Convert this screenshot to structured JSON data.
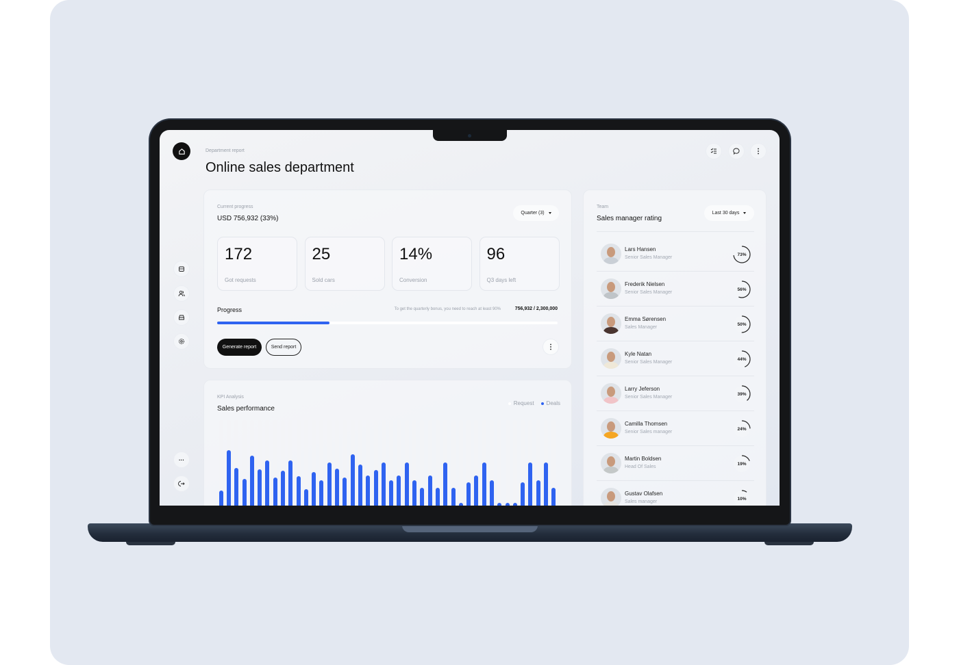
{
  "colors": {
    "accent": "#2f63f0",
    "dark": "#111111",
    "page_bg": "#e3e8f1"
  },
  "header": {
    "breadcrumb": "Department report",
    "title": "Online sales department",
    "icons": [
      "checklist-icon",
      "chat-icon",
      "more-vertical-icon"
    ]
  },
  "sidebar": {
    "top_icon": "home-icon",
    "items": [
      "store-icon",
      "users-icon",
      "car-icon",
      "settings-icon"
    ],
    "bottom": [
      "more-horizontal-icon",
      "logout-icon"
    ]
  },
  "progress_card": {
    "label": "Current progress",
    "value": "USD 756,932 (33%)",
    "period": "Quarter (3)",
    "stats": [
      {
        "value": "172",
        "label": "Got requests"
      },
      {
        "value": "25",
        "label": "Sold cars"
      },
      {
        "value": "14%",
        "label": "Conversion"
      },
      {
        "value": "96",
        "label": "Q3 days left"
      }
    ],
    "progress_label": "Progress",
    "hint": "To get the quarterly bonus, you need to reach at least 90%",
    "amount": "756,932 / 2,300,000",
    "progress_percent": 33,
    "generate_label": "Generate report",
    "send_label": "Send report"
  },
  "kpi_card": {
    "label": "KPI Analysis",
    "title": "Sales performance",
    "legend": [
      "Request",
      "Deals"
    ]
  },
  "chart_data": {
    "type": "bar",
    "legend": [
      "Request",
      "Deals"
    ],
    "series": [
      {
        "name": "Request",
        "values": [
          100,
          100,
          100,
          100,
          100,
          100,
          100,
          100,
          100,
          100,
          100,
          100,
          100,
          100,
          100,
          100,
          100,
          100,
          100,
          100,
          100,
          100,
          100,
          100,
          100,
          100,
          100,
          100,
          100,
          100,
          100,
          100,
          100,
          100,
          100,
          100,
          100,
          100,
          100,
          100,
          100,
          100,
          100,
          100
        ]
      },
      {
        "name": "Deals",
        "values": [
          23,
          82,
          56,
          40,
          74,
          54,
          67,
          42,
          52,
          67,
          44,
          25,
          50,
          38,
          64,
          55,
          42,
          76,
          61,
          45,
          53,
          64,
          38,
          45,
          64,
          38,
          27,
          45,
          27,
          64,
          27,
          5,
          35,
          45,
          64,
          38,
          5,
          5,
          5,
          35,
          64,
          38,
          64,
          27
        ]
      }
    ],
    "colors": {
      "Request": "#f3f4f7",
      "Deals": "#2f63f0"
    }
  },
  "team_card": {
    "label": "Team",
    "title": "Sales manager rating",
    "period": "Last 30 days",
    "managers": [
      {
        "name": "Lars Hansen",
        "role": "Senior Sales Manager",
        "rating": 73,
        "rating_label": "73%",
        "avatar": "#c9cfd6"
      },
      {
        "name": "Frederik Nielsen",
        "role": "Senior Sales Manager",
        "rating": 56,
        "rating_label": "56%",
        "avatar": "#bfc4c8"
      },
      {
        "name": "Emma Sørensen",
        "role": "Sales Manager",
        "rating": 50,
        "rating_label": "50%",
        "avatar": "#4a3530"
      },
      {
        "name": "Kyle Natan",
        "role": "Senior Sales Manager",
        "rating": 44,
        "rating_label": "44%",
        "avatar": "#efe8d8"
      },
      {
        "name": "Larry Jeferson",
        "role": "Senior Sales Manager",
        "rating": 39,
        "rating_label": "39%",
        "avatar": "#f1c4c8"
      },
      {
        "name": "Camilla Thomsen",
        "role": "Senior Sales manager",
        "rating": 24,
        "rating_label": "24%",
        "avatar": "#f5a623"
      },
      {
        "name": "Martin Boldsen",
        "role": "Head Of Sales",
        "rating": 19,
        "rating_label": "19%",
        "avatar": "#c4c8c8"
      },
      {
        "name": "Gustav Olafsen",
        "role": "Sales manager",
        "rating": 10,
        "rating_label": "10%",
        "avatar": "#e6e3df"
      }
    ]
  }
}
